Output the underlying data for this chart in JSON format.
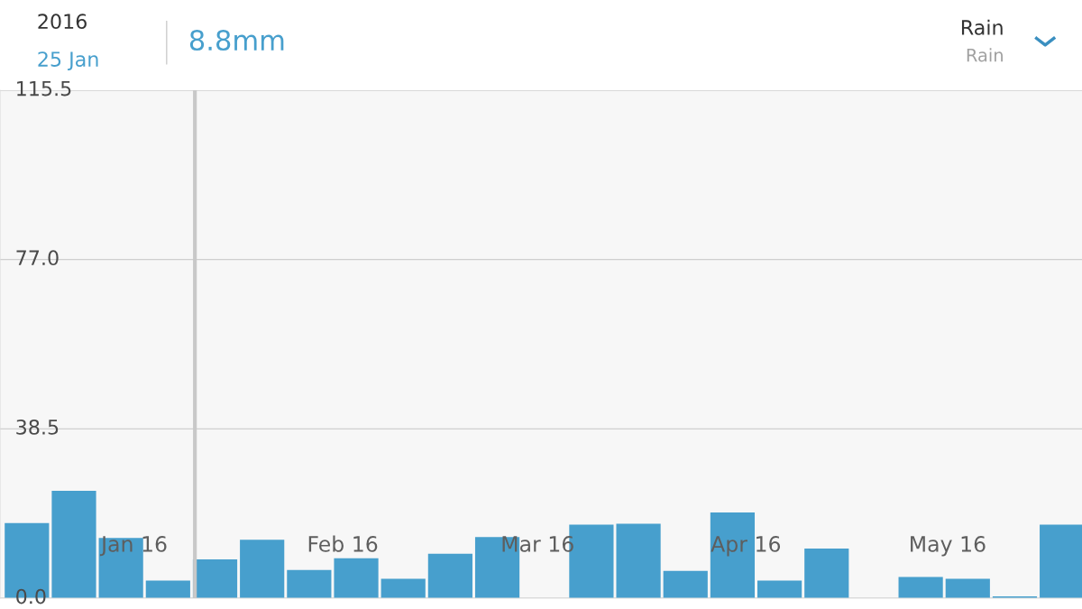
{
  "chart_data": {
    "type": "bar",
    "title": "Rain",
    "subtitle": "Rain",
    "annotations": [
      "2016",
      "25 Jan",
      "8.8mm"
    ],
    "x": [
      "2015-12-31",
      "2016-01-07",
      "2016-01-14",
      "2016-01-21",
      "2016-01-28",
      "2016-02-04",
      "2016-02-11",
      "2016-02-18",
      "2016-02-25",
      "2016-03-03",
      "2016-03-10",
      "2016-03-17",
      "2016-03-24",
      "2016-03-31",
      "2016-04-07",
      "2016-04-14",
      "2016-04-21",
      "2016-04-28",
      "2016-05-05",
      "2016-05-12",
      "2016-05-19",
      "2016-05-26",
      "2016-06-02"
    ],
    "values": [
      17.1,
      24.4,
      13.7,
      4.0,
      8.8,
      13.3,
      6.4,
      9.1,
      4.4,
      10.1,
      13.9,
      0,
      16.7,
      16.9,
      6.2,
      19.5,
      4.0,
      11.3,
      0,
      4.8,
      4.4,
      0.4,
      16.7
    ],
    "color": "#479fcd",
    "xlim": [
      "2015-12-27",
      "2016-06-05"
    ],
    "xticks": [
      {
        "value": "2016-01-16",
        "label": "Jan 16"
      },
      {
        "value": "2016-02-16",
        "label": "Feb 16"
      },
      {
        "value": "2016-03-16",
        "label": "Mar 16"
      },
      {
        "value": "2016-04-16",
        "label": "Apr 16"
      },
      {
        "value": "2016-05-16",
        "label": "May 16"
      }
    ],
    "ylim": [
      0,
      115.5
    ],
    "yticks": [
      {
        "value": 0,
        "label": "0.0"
      },
      38.5,
      {
        "value": 77,
        "label": "77.0"
      },
      115.5
    ],
    "ref_lines": [
      {
        "axis": "x",
        "value": "2016-01-25",
        "label": null,
        "color": "#c8c8c8"
      }
    ],
    "grid": "y",
    "legend": false
  }
}
